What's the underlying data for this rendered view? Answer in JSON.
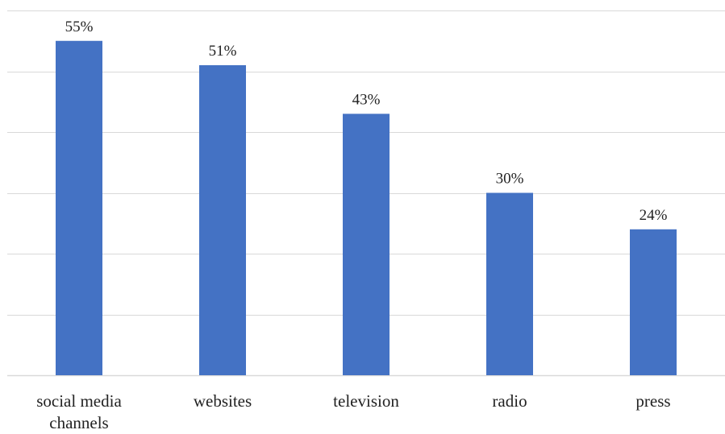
{
  "chart_data": {
    "type": "bar",
    "categories": [
      [
        "social media",
        "channels"
      ],
      [
        "websites"
      ],
      [
        "television"
      ],
      [
        "radio"
      ],
      [
        "press"
      ]
    ],
    "values": [
      55,
      51,
      43,
      30,
      24
    ],
    "data_labels": [
      "55%",
      "51%",
      "43%",
      "30%",
      "24%"
    ],
    "ylim": [
      0,
      60
    ],
    "grid": true,
    "gridline_interval": 10,
    "y_axis_labels_shown": false,
    "legend": "none",
    "colors": {
      "bar": "#4472C4",
      "grid": "#D9D9D9",
      "text": "#222222"
    }
  }
}
